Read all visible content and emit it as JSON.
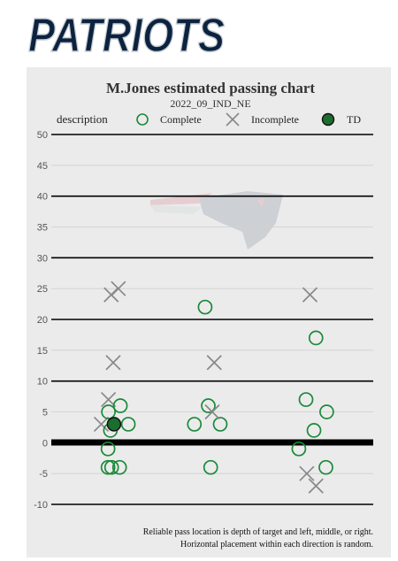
{
  "logo_text": "PATRIOTS",
  "chart_data": {
    "type": "scatter",
    "title": "M.Jones estimated passing chart",
    "subtitle": "2022_09_IND_NE",
    "legend": {
      "title": "description",
      "placement": "top",
      "entries": [
        {
          "label": "Complete",
          "marker": "open-circle",
          "color": "#1b8a3a"
        },
        {
          "label": "Incomplete",
          "marker": "x",
          "color": "#888888"
        },
        {
          "label": "TD",
          "marker": "filled-circle",
          "color": "#1b6e2e"
        }
      ]
    },
    "ylim": [
      -10,
      50
    ],
    "yticks": [
      "-10",
      "-5",
      "0",
      "5",
      "10",
      "15",
      "20",
      "25",
      "30",
      "35",
      "40",
      "45",
      "50"
    ],
    "directions": [
      "left",
      "middle",
      "right"
    ],
    "points": [
      {
        "direction": "left",
        "offset": -0.3,
        "y": 3,
        "type": "Incomplete"
      },
      {
        "direction": "left",
        "offset": -0.12,
        "y": 7,
        "type": "Incomplete"
      },
      {
        "direction": "left",
        "offset": -0.05,
        "y": 24,
        "type": "Incomplete"
      },
      {
        "direction": "left",
        "offset": 0.13,
        "y": 25,
        "type": "Incomplete"
      },
      {
        "direction": "left",
        "offset": 0.0,
        "y": 13,
        "type": "Incomplete"
      },
      {
        "direction": "left",
        "offset": -0.12,
        "y": 5,
        "type": "Complete"
      },
      {
        "direction": "left",
        "offset": 0.18,
        "y": 6,
        "type": "Complete"
      },
      {
        "direction": "left",
        "offset": -0.07,
        "y": 2,
        "type": "Complete"
      },
      {
        "direction": "left",
        "offset": 0.38,
        "y": 3,
        "type": "Complete"
      },
      {
        "direction": "left",
        "offset": -0.13,
        "y": -1,
        "type": "Complete"
      },
      {
        "direction": "left",
        "offset": -0.13,
        "y": -4,
        "type": "Complete"
      },
      {
        "direction": "left",
        "offset": -0.04,
        "y": -4,
        "type": "Complete"
      },
      {
        "direction": "left",
        "offset": 0.16,
        "y": -4,
        "type": "Complete"
      },
      {
        "direction": "left",
        "offset": 0.02,
        "y": 3,
        "type": "TD"
      },
      {
        "direction": "middle",
        "offset": -0.18,
        "y": 22,
        "type": "Complete"
      },
      {
        "direction": "middle",
        "offset": -0.1,
        "y": 6,
        "type": "Complete"
      },
      {
        "direction": "middle",
        "offset": -0.45,
        "y": 3,
        "type": "Complete"
      },
      {
        "direction": "middle",
        "offset": 0.2,
        "y": 3,
        "type": "Complete"
      },
      {
        "direction": "middle",
        "offset": -0.04,
        "y": -4,
        "type": "Complete"
      },
      {
        "direction": "middle",
        "offset": 0.05,
        "y": 13,
        "type": "Incomplete"
      },
      {
        "direction": "middle",
        "offset": 0.0,
        "y": 5,
        "type": "Incomplete"
      },
      {
        "direction": "right",
        "offset": -0.1,
        "y": 24,
        "type": "Incomplete"
      },
      {
        "direction": "right",
        "offset": -0.18,
        "y": -5,
        "type": "Incomplete"
      },
      {
        "direction": "right",
        "offset": 0.05,
        "y": -7,
        "type": "Incomplete"
      },
      {
        "direction": "right",
        "offset": 0.05,
        "y": 17,
        "type": "Complete"
      },
      {
        "direction": "right",
        "offset": -0.2,
        "y": 7,
        "type": "Complete"
      },
      {
        "direction": "right",
        "offset": 0.32,
        "y": 5,
        "type": "Complete"
      },
      {
        "direction": "right",
        "offset": 0.0,
        "y": 2,
        "type": "Complete"
      },
      {
        "direction": "right",
        "offset": -0.38,
        "y": -1,
        "type": "Complete"
      },
      {
        "direction": "right",
        "offset": 0.3,
        "y": -4,
        "type": "Complete"
      }
    ],
    "caption": [
      "Reliable pass location is depth of target and left, middle, or right.",
      "Horizontal placement within each direction is random."
    ]
  },
  "colors": {
    "navy": "#0c2340",
    "red": "#c60c30",
    "silver": "#b0b7bc",
    "panel": "#ebebeb",
    "complete": "#1b8a3a",
    "incomplete": "#888888",
    "td": "#1b6e2e"
  }
}
